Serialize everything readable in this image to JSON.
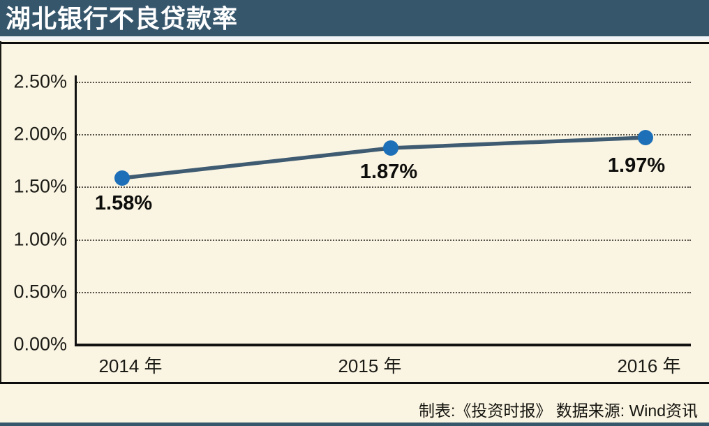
{
  "header": {
    "title": "湖北银行不良贷款率",
    "bar_color": "#36566C"
  },
  "footer": {
    "credit": "制表:《投资时报》  数据来源: Wind资讯"
  },
  "chart_data": {
    "type": "line",
    "title": "湖北银行不良贷款率",
    "categories": [
      "2014 年",
      "2015 年",
      "2016 年"
    ],
    "values": [
      1.58,
      1.87,
      1.97
    ],
    "point_labels": [
      "1.58%",
      "1.87%",
      "1.97%"
    ],
    "xlabel": "",
    "ylabel": "",
    "ylim": [
      0,
      2.5
    ],
    "y_ticks": [
      {
        "value": 0.0,
        "label": "0.00%"
      },
      {
        "value": 0.5,
        "label": "0.50%"
      },
      {
        "value": 1.0,
        "label": "1.00%"
      },
      {
        "value": 1.5,
        "label": "1.50%"
      },
      {
        "value": 2.0,
        "label": "2.00%"
      },
      {
        "value": 2.5,
        "label": "2.50%"
      }
    ],
    "grid": "horizontal-dotted",
    "legend": "none",
    "line_color": "#3E5B72",
    "marker_color": "#1D70B7",
    "background_color": "#FAF4E2",
    "source_note": "制表:《投资时报》  数据来源: Wind资讯"
  }
}
